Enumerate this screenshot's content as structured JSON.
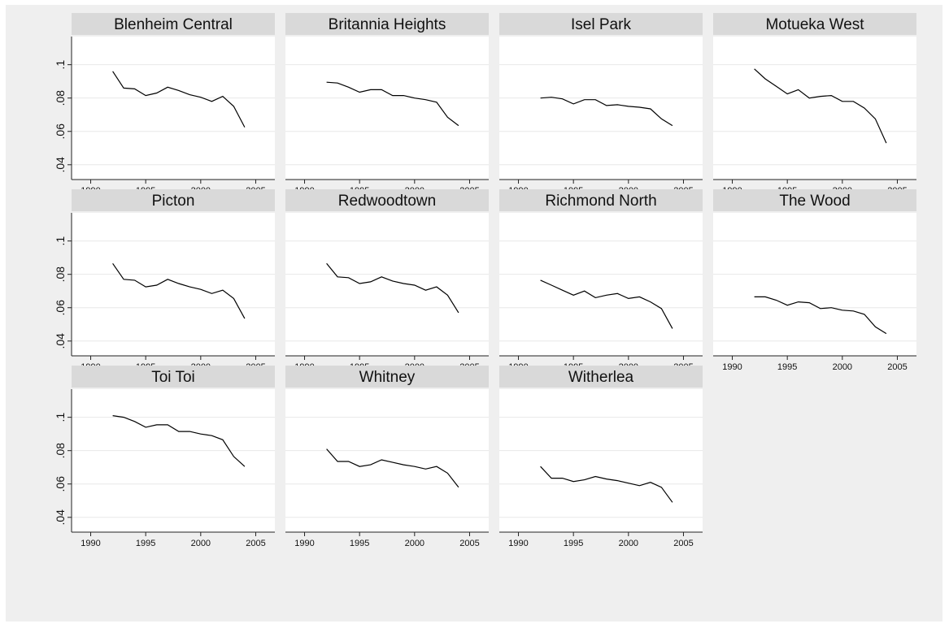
{
  "chart_data": {
    "type": "line",
    "layout": "small-multiples",
    "xticks": [
      1990,
      1995,
      2000,
      2005
    ],
    "yticks": [
      0.04,
      0.06,
      0.08,
      0.1
    ],
    "ytick_labels": [
      ".04",
      ".06",
      ".08",
      ".1"
    ],
    "xlim": [
      1989,
      2006
    ],
    "ylim": [
      0.036,
      0.112
    ],
    "x": [
      1992,
      1993,
      1994,
      1995,
      1996,
      1997,
      1998,
      1999,
      2000,
      2001,
      2002,
      2003,
      2004
    ],
    "grid": true,
    "panels": [
      {
        "title": "Blenheim Central",
        "values": [
          0.096,
          0.086,
          0.0855,
          0.0815,
          0.083,
          0.0865,
          0.0845,
          0.082,
          0.0805,
          0.078,
          0.081,
          0.075,
          0.0625
        ]
      },
      {
        "title": "Britannia Heights",
        "values": [
          0.0895,
          0.089,
          0.0865,
          0.0835,
          0.085,
          0.085,
          0.0815,
          0.0815,
          0.08,
          0.079,
          0.0775,
          0.0685,
          0.0635
        ]
      },
      {
        "title": "Isel Park",
        "values": [
          0.08,
          0.0805,
          0.0795,
          0.0765,
          0.079,
          0.079,
          0.0755,
          0.076,
          0.075,
          0.0745,
          0.0735,
          0.0675,
          0.0635
        ]
      },
      {
        "title": "Motueka West",
        "values": [
          0.0975,
          0.0915,
          0.087,
          0.0825,
          0.085,
          0.08,
          0.081,
          0.0815,
          0.078,
          0.078,
          0.074,
          0.0675,
          0.053
        ]
      },
      {
        "title": "Picton",
        "values": [
          0.0865,
          0.077,
          0.0765,
          0.0725,
          0.0735,
          0.077,
          0.0745,
          0.0725,
          0.071,
          0.0685,
          0.0705,
          0.0655,
          0.0535
        ]
      },
      {
        "title": "Redwoodtown",
        "values": [
          0.0865,
          0.0785,
          0.078,
          0.0745,
          0.0755,
          0.0785,
          0.076,
          0.0745,
          0.0735,
          0.0705,
          0.0725,
          0.0675,
          0.057
        ]
      },
      {
        "title": "Richmond North",
        "values": [
          0.0765,
          0.0735,
          0.0705,
          0.0675,
          0.07,
          0.066,
          0.0675,
          0.0685,
          0.0655,
          0.0665,
          0.0635,
          0.0595,
          0.0475
        ]
      },
      {
        "title": "The Wood",
        "values": [
          0.0665,
          0.0665,
          0.0645,
          0.0615,
          0.0635,
          0.063,
          0.0595,
          0.06,
          0.0585,
          0.058,
          0.056,
          0.0485,
          0.0445
        ]
      },
      {
        "title": "Toi Toi",
        "values": [
          0.101,
          0.1,
          0.0975,
          0.094,
          0.0955,
          0.0955,
          0.0915,
          0.0915,
          0.09,
          0.089,
          0.0865,
          0.0765,
          0.0705
        ]
      },
      {
        "title": "Whitney",
        "values": [
          0.081,
          0.0735,
          0.0735,
          0.0705,
          0.0715,
          0.0745,
          0.073,
          0.0715,
          0.0705,
          0.069,
          0.0705,
          0.0665,
          0.058
        ]
      },
      {
        "title": "Witherlea",
        "values": [
          0.0705,
          0.0635,
          0.0635,
          0.0615,
          0.0625,
          0.0645,
          0.063,
          0.062,
          0.0605,
          0.059,
          0.061,
          0.058,
          0.049
        ]
      }
    ]
  },
  "colors": {
    "figure_background": "#efefef",
    "plot_background": "#ffffff",
    "title_strip": "#d9d9d9",
    "line": "#000000",
    "grid": "#e8e8e8",
    "axis": "#222222"
  }
}
